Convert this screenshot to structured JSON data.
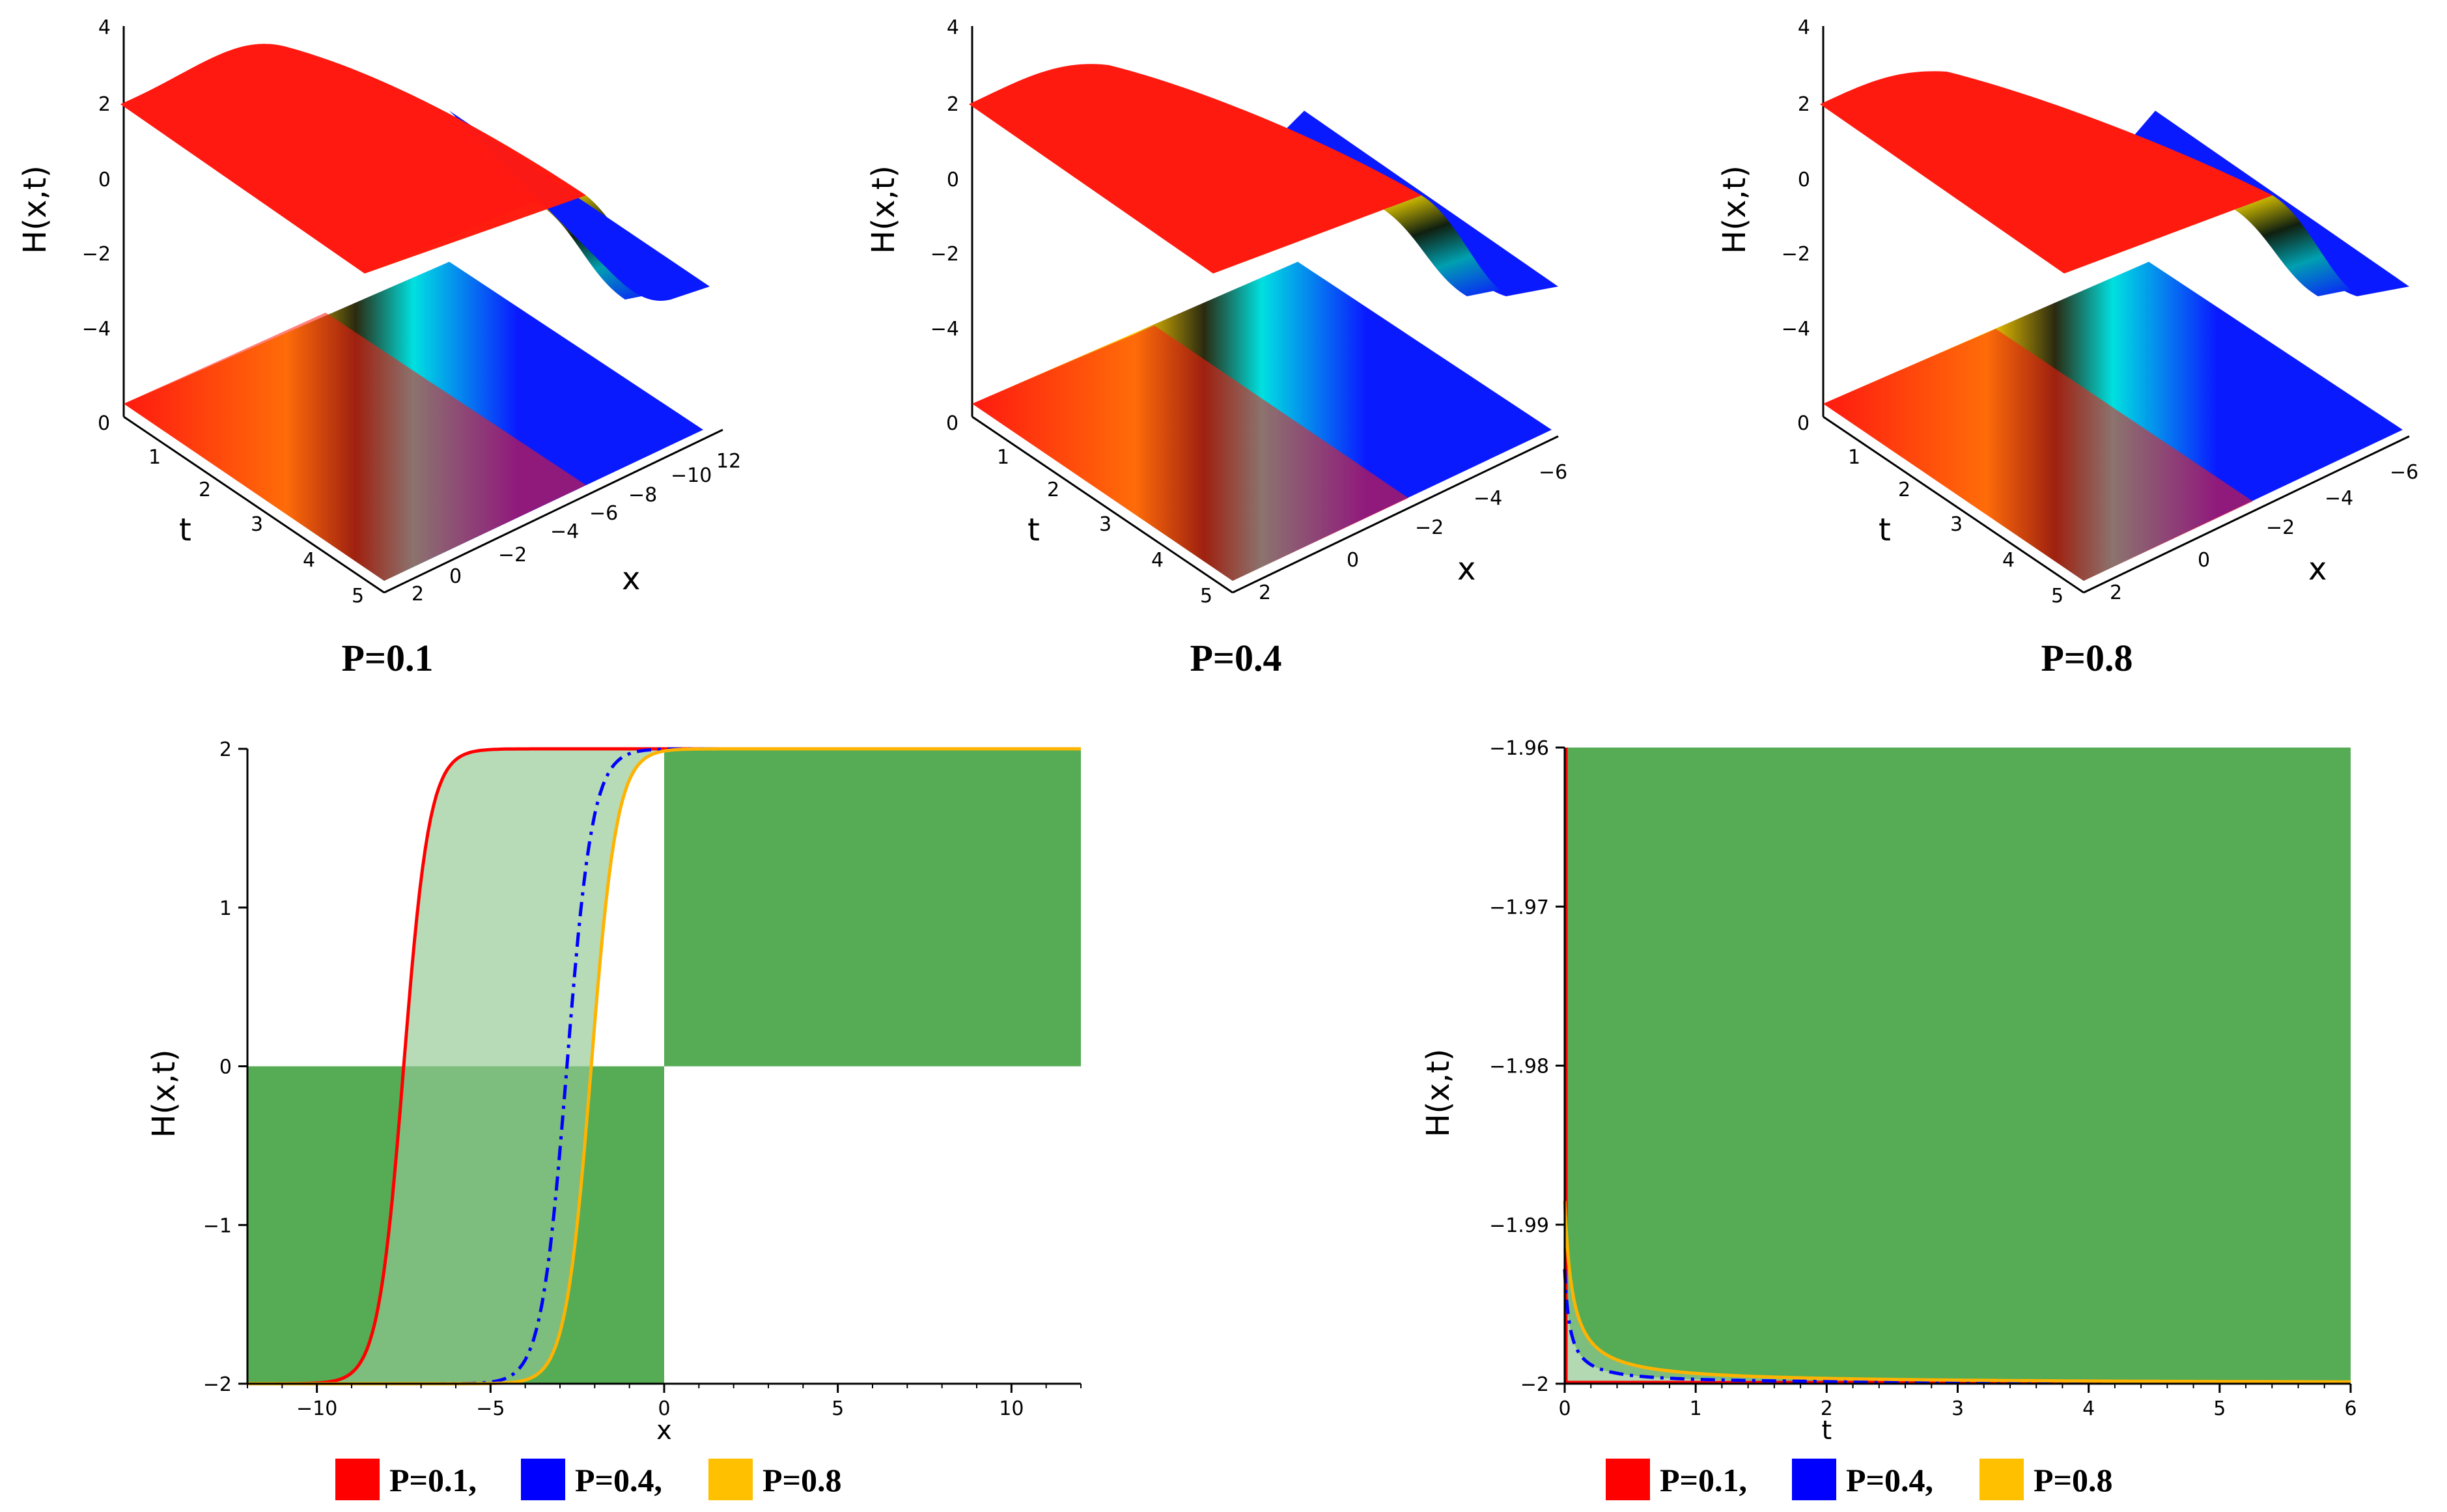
{
  "colors": {
    "p01": "#ff0000",
    "p04": "#0000ff",
    "p08": "#ffb300",
    "fill_dark": "#55ac55",
    "fill_mid": "#7dbd7d",
    "fill_light": "#b2d9b2",
    "surf_red": "#ff1a10",
    "surf_blue": "#0a1aff"
  },
  "chart_data": [
    {
      "type": "surface3d",
      "caption": "P=0.1",
      "zlabel": "H(x,t)",
      "tlabel": "t",
      "xlabel": "x",
      "z_ticks": [
        "4",
        "2",
        "0",
        "−2",
        "−4"
      ],
      "t_ticks": [
        "0",
        "1",
        "2",
        "3",
        "4",
        "5"
      ],
      "x_ticks": [
        "2",
        "0",
        "−2",
        "−4",
        "−6",
        "−8",
        "−10",
        "12"
      ]
    },
    {
      "type": "surface3d",
      "caption": "P=0.4",
      "zlabel": "H(x,t)",
      "tlabel": "t",
      "xlabel": "x",
      "z_ticks": [
        "4",
        "2",
        "0",
        "−2",
        "−4"
      ],
      "t_ticks": [
        "0",
        "1",
        "2",
        "3",
        "4",
        "5"
      ],
      "x_ticks": [
        "2",
        "0",
        "−2",
        "−4",
        "−6"
      ]
    },
    {
      "type": "surface3d",
      "caption": "P=0.8",
      "zlabel": "H(x,t)",
      "tlabel": "t",
      "xlabel": "x",
      "z_ticks": [
        "4",
        "2",
        "0",
        "−2",
        "−4"
      ],
      "t_ticks": [
        "0",
        "1",
        "2",
        "3",
        "4",
        "5"
      ],
      "x_ticks": [
        "2",
        "0",
        "−2",
        "−4",
        "−6"
      ]
    },
    {
      "type": "line",
      "xlabel": "x",
      "ylabel": "H(x,t)",
      "xlim": [
        -12,
        12
      ],
      "ylim": [
        -2,
        2
      ],
      "x_ticks": [
        -10,
        -5,
        0,
        5,
        10
      ],
      "x_tick_labels": [
        "−10",
        "−5",
        "0",
        "5",
        "10"
      ],
      "y_ticks": [
        -2,
        -1,
        0,
        1,
        2
      ],
      "y_tick_labels": [
        "−2",
        "−1",
        "0",
        "1",
        "2"
      ],
      "series": [
        {
          "name": "P=0.1",
          "color": "#ff0000",
          "style": "solid",
          "center": -7.5,
          "steep": 1.35
        },
        {
          "name": "P=0.4",
          "color": "#0000ff",
          "style": "dashdot",
          "center": -2.8,
          "steep": 1.35
        },
        {
          "name": "P=0.8",
          "color": "#ffb300",
          "style": "solid",
          "center": -2.1,
          "steep": 1.35
        }
      ],
      "legend": [
        "P=0.1,",
        "P=0.4,",
        "P=0.8"
      ]
    },
    {
      "type": "line",
      "xlabel": "t",
      "ylabel": "H(x,t)",
      "xlim": [
        0,
        6
      ],
      "ylim": [
        -2,
        -1.96
      ],
      "x_ticks": [
        0,
        1,
        2,
        3,
        4,
        5,
        6
      ],
      "x_tick_labels": [
        "0",
        "1",
        "2",
        "3",
        "4",
        "5",
        "6"
      ],
      "y_ticks": [
        -2,
        -1.99,
        -1.98,
        -1.97,
        -1.96
      ],
      "y_tick_labels": [
        "−2",
        "−1.99",
        "−1.98",
        "−1.97",
        "−1.96"
      ],
      "series": [
        {
          "name": "P=0.1",
          "color": "#ff0000",
          "style": "solid",
          "a": 0.0001,
          "k": 20
        },
        {
          "name": "P=0.4",
          "color": "#0000ff",
          "style": "dashdot",
          "a": 0.0072,
          "k": 0.04
        },
        {
          "name": "P=0.8",
          "color": "#ffb300",
          "style": "solid",
          "a": 0.0115,
          "k": 0.06
        }
      ],
      "legend": [
        "P=0.1,",
        "P=0.4,",
        "P=0.8"
      ]
    }
  ]
}
